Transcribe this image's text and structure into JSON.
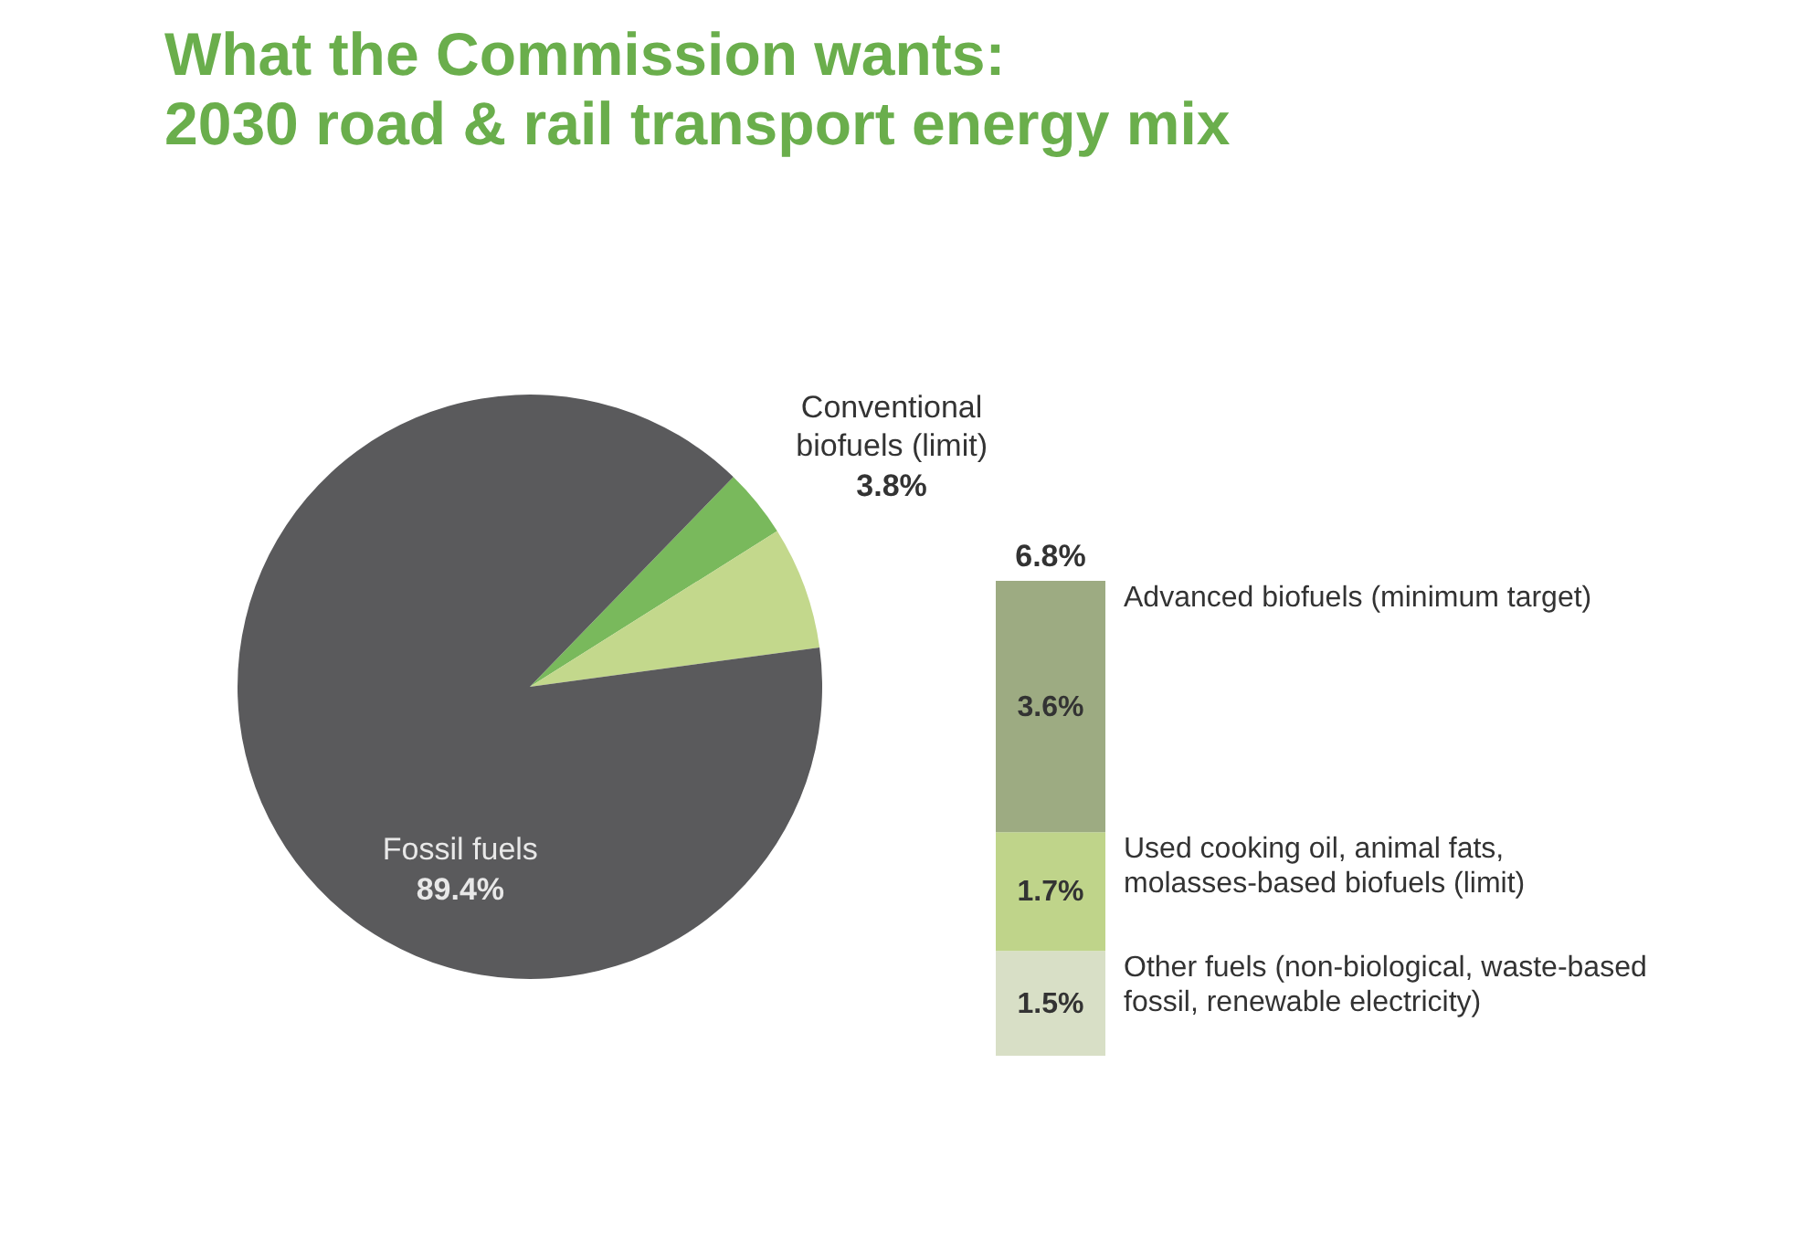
{
  "chart_data": [
    {
      "type": "pie",
      "title": "What the Commission wants: 2030 road & rail transport energy mix",
      "categories": [
        "Conventional biofuels (limit)",
        null,
        "Fossil fuels"
      ],
      "values": [
        3.8,
        6.8,
        89.4
      ],
      "colors": [
        "#79b95c",
        "#c3d88c",
        "#5a5a5c"
      ],
      "value_labels": [
        "3.8%",
        null,
        "89.4%"
      ]
    },
    {
      "type": "bar",
      "stacked": true,
      "categories": [
        null
      ],
      "series": [
        {
          "name": "Other fuels (non-biological, waste-based fossil, renewable electricity)",
          "color": "#d8dfc6",
          "values": [
            1.5
          ],
          "value_labels": [
            "1.5%"
          ]
        },
        {
          "name": "Used cooking oil, animal fats, molasses-based biofuels (limit)",
          "color": "#bfd48a",
          "values": [
            1.7
          ],
          "value_labels": [
            "1.7%"
          ]
        },
        {
          "name": "Advanced biofuels (minimum target)",
          "color": "#9dab82",
          "values": [
            3.6
          ],
          "value_labels": [
            "3.6%"
          ]
        }
      ],
      "totals": [
        "6.8%"
      ]
    }
  ]
}
